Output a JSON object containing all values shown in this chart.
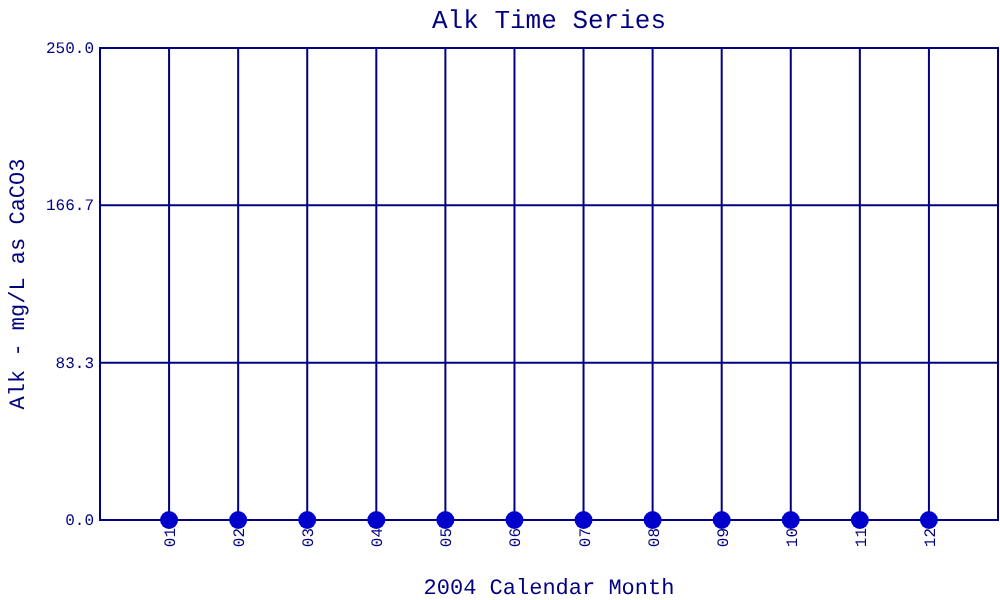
{
  "chart_data": {
    "type": "scatter",
    "title": "Alk Time Series",
    "xlabel": "2004 Calendar Month",
    "ylabel": "Alk - mg/L as CaCO3",
    "categories": [
      "01",
      "02",
      "03",
      "04",
      "05",
      "06",
      "07",
      "08",
      "09",
      "10",
      "11",
      "12"
    ],
    "values": [
      0,
      0,
      0,
      0,
      0,
      0,
      0,
      0,
      0,
      0,
      0,
      0
    ],
    "color": "#0000cc",
    "ylim": [
      0,
      250
    ],
    "yticks": [
      {
        "value": 0,
        "label": "0.0"
      },
      {
        "value": 83.3,
        "label": "83.3"
      },
      {
        "value": 166.7,
        "label": "166.7"
      },
      {
        "value": 250,
        "label": "250.0"
      }
    ],
    "grid": true,
    "marker": "circle"
  }
}
